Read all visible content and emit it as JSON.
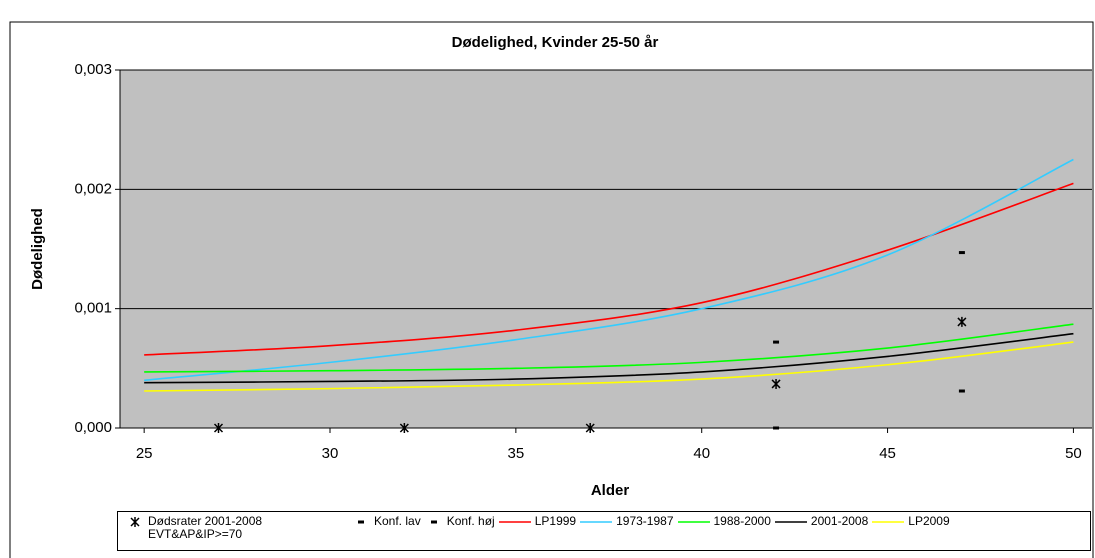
{
  "chart_data": {
    "type": "line",
    "title": "Dødelighed, Kvinder 25-50 år",
    "xlabel": "Alder",
    "ylabel": "Dødelighed",
    "xlim": [
      24.35,
      50.5
    ],
    "xticks": [
      25,
      30,
      35,
      40,
      45,
      50
    ],
    "ylim": [
      0,
      0.003
    ],
    "yticks": [
      {
        "value": 0,
        "label": "0,000"
      },
      {
        "value": 0.001,
        "label": "0,001"
      },
      {
        "value": 0.002,
        "label": "0,002"
      },
      {
        "value": 0.003,
        "label": "0,003"
      }
    ],
    "grid": true,
    "plot_background": "#c0c0c0",
    "legend": "bottom",
    "series": [
      {
        "name": "Dødsrater 2001-2008 EVT&AP&IP>=70",
        "type": "scatter",
        "marker": "asterisk",
        "color": "#000000",
        "x": [
          27,
          32,
          37,
          42,
          47
        ],
        "values": [
          0,
          0,
          0,
          0.000369,
          0.000889
        ]
      },
      {
        "name": "Konf. lav",
        "type": "scatter",
        "marker": "dash",
        "color": "#000000",
        "x": [
          42,
          47
        ],
        "values": [
          0,
          0.00031
        ]
      },
      {
        "name": "Konf. høj",
        "type": "scatter",
        "marker": "dash",
        "color": "#000000",
        "x": [
          42,
          47
        ],
        "values": [
          0.00072,
          0.00147
        ]
      },
      {
        "name": "LP1999",
        "type": "line",
        "color": "#ff0000",
        "x": [
          25,
          30,
          35,
          40,
          45,
          50
        ],
        "values": [
          0.000612,
          0.00069,
          0.00082,
          0.00105,
          0.00149,
          0.00205
        ]
      },
      {
        "name": "1973-1987",
        "type": "line",
        "color": "#33ccff",
        "x": [
          25,
          30,
          35,
          40,
          45,
          50
        ],
        "values": [
          0.0004,
          0.00055,
          0.00074,
          0.001,
          0.00145,
          0.00225
        ]
      },
      {
        "name": "1988-2000",
        "type": "line",
        "color": "#00ff00",
        "x": [
          25,
          30,
          35,
          40,
          45,
          50
        ],
        "values": [
          0.00047,
          0.00048,
          0.0005,
          0.00055,
          0.00067,
          0.00087
        ]
      },
      {
        "name": "2001-2008",
        "type": "line",
        "color": "#000000",
        "x": [
          25,
          30,
          35,
          40,
          45,
          50
        ],
        "values": [
          0.00038,
          0.00039,
          0.00041,
          0.00047,
          0.0006,
          0.00079
        ]
      },
      {
        "name": "LP2009",
        "type": "line",
        "color": "#ffff00",
        "x": [
          25,
          30,
          35,
          40,
          45,
          50
        ],
        "values": [
          0.00031,
          0.00033,
          0.00036,
          0.00041,
          0.00053,
          0.00072
        ]
      }
    ]
  }
}
